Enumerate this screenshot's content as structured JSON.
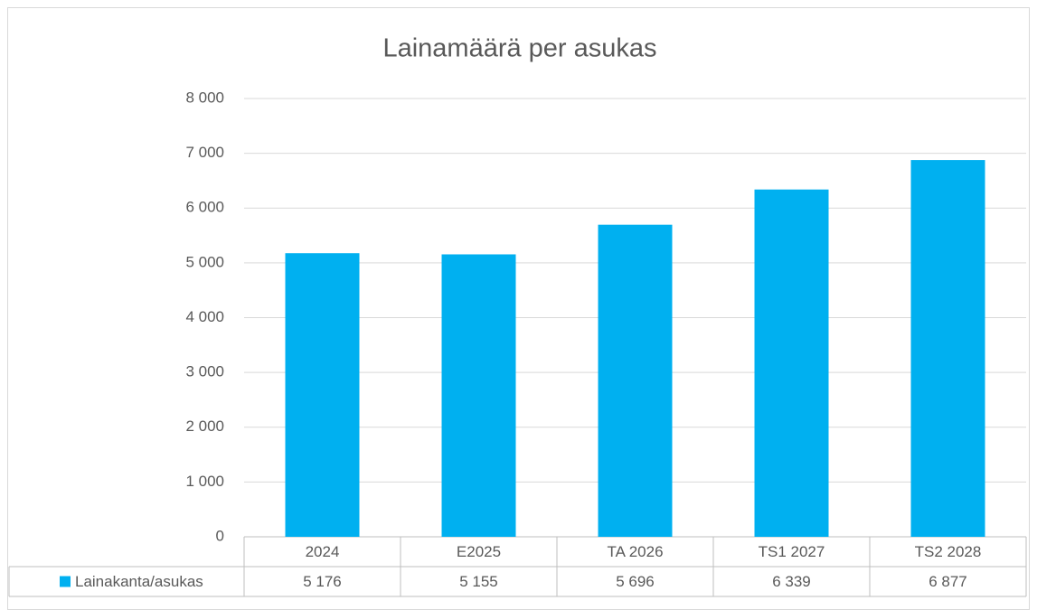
{
  "chart_data": {
    "type": "bar",
    "title": "Lainamäärä per asukas",
    "categories": [
      "2024",
      "E2025",
      "TA 2026",
      "TS1 2027",
      "TS2 2028"
    ],
    "series": [
      {
        "name": "Lainakanta/asukas",
        "color": "#00b0f0",
        "values": [
          5176,
          5155,
          5696,
          6339,
          6877
        ],
        "value_labels": [
          "5 176",
          "5 155",
          "5 696",
          "6 339",
          "6 877"
        ]
      }
    ],
    "ylim": [
      0,
      8000
    ],
    "yticks": [
      0,
      {
        "value": 1000,
        "label": "1 000"
      },
      {
        "value": 2000,
        "label": "2 000"
      },
      {
        "value": 3000,
        "label": "3 000"
      },
      {
        "value": 4000,
        "label": "4 000"
      },
      {
        "value": 5000,
        "label": "5 000"
      },
      {
        "value": 6000,
        "label": "6 000"
      },
      {
        "value": 7000,
        "label": "7 000"
      },
      {
        "value": 8000,
        "label": "8 000"
      }
    ],
    "grid": true
  }
}
